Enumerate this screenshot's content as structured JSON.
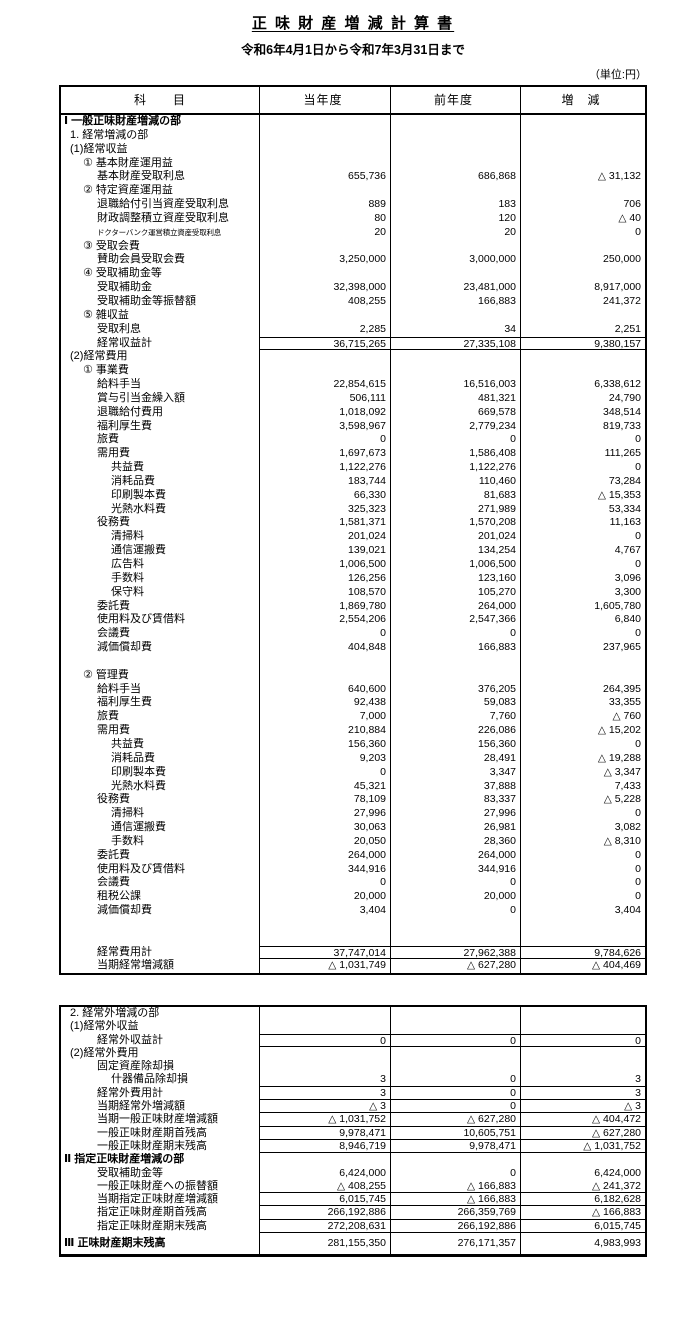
{
  "page": {
    "title": "正 味 財 産 増 減 計 算 書",
    "subtitle": "令和6年4月1日から令和7年3月31日まで",
    "unit_label": "（単位:円）"
  },
  "colors": {
    "text": "#000000",
    "background": "#ffffff",
    "border": "#000000"
  },
  "columns": {
    "account": "科　　目",
    "current": "当年度",
    "prior": "前年度",
    "change": "増　減"
  },
  "negative_prefix": "△",
  "table1": {
    "rows": [
      {
        "l": "Ⅰ 一般正味財産増減の部",
        "i": 0,
        "f": "b",
        "v": [
          "",
          "",
          ""
        ]
      },
      {
        "l": "1. 経常増減の部",
        "i": 1,
        "f": "",
        "v": [
          "",
          "",
          ""
        ]
      },
      {
        "l": "(1)経常収益",
        "i": 1,
        "f": "",
        "v": [
          "",
          "",
          ""
        ]
      },
      {
        "l": "① 基本財産運用益",
        "i": 2,
        "f": "",
        "v": [
          "",
          "",
          ""
        ]
      },
      {
        "l": "基本財産受取利息",
        "i": 3,
        "f": "",
        "v": [
          "655,736",
          "686,868",
          "△ 31,132"
        ]
      },
      {
        "l": "② 特定資産運用益",
        "i": 2,
        "f": "",
        "v": [
          "",
          "",
          ""
        ]
      },
      {
        "l": "退職給付引当資産受取利息",
        "i": 3,
        "f": "",
        "v": [
          "889",
          "183",
          "706"
        ]
      },
      {
        "l": "財政調整積立資産受取利息",
        "i": 3,
        "f": "",
        "v": [
          "80",
          "120",
          "△ 40"
        ]
      },
      {
        "l": "ドクターバンク運営積立資産受取利息",
        "i": 3,
        "f": "s",
        "v": [
          "20",
          "20",
          "0"
        ]
      },
      {
        "l": "③ 受取会費",
        "i": 2,
        "f": "",
        "v": [
          "",
          "",
          ""
        ]
      },
      {
        "l": "賛助会員受取会費",
        "i": 3,
        "f": "",
        "v": [
          "3,250,000",
          "3,000,000",
          "250,000"
        ]
      },
      {
        "l": "④ 受取補助金等",
        "i": 2,
        "f": "",
        "v": [
          "",
          "",
          ""
        ]
      },
      {
        "l": "受取補助金",
        "i": 3,
        "f": "",
        "v": [
          "32,398,000",
          "23,481,000",
          "8,917,000"
        ]
      },
      {
        "l": "受取補助金等振替額",
        "i": 3,
        "f": "",
        "v": [
          "408,255",
          "166,883",
          "241,372"
        ]
      },
      {
        "l": "⑤ 雑収益",
        "i": 2,
        "f": "",
        "v": [
          "",
          "",
          ""
        ]
      },
      {
        "l": "受取利息",
        "i": 3,
        "f": "",
        "v": [
          "2,285",
          "34",
          "2,251"
        ]
      },
      {
        "l": "経常収益計",
        "i": 3,
        "f": "tu",
        "v": [
          "36,715,265",
          "27,335,108",
          "9,380,157"
        ]
      },
      {
        "l": "(2)経常費用",
        "i": 1,
        "f": "",
        "v": [
          "",
          "",
          ""
        ]
      },
      {
        "l": "① 事業費",
        "i": 2,
        "f": "",
        "v": [
          "",
          "",
          ""
        ]
      },
      {
        "l": "給料手当",
        "i": 3,
        "f": "",
        "v": [
          "22,854,615",
          "16,516,003",
          "6,338,612"
        ]
      },
      {
        "l": "賞与引当金繰入額",
        "i": 3,
        "f": "",
        "v": [
          "506,111",
          "481,321",
          "24,790"
        ]
      },
      {
        "l": "退職給付費用",
        "i": 3,
        "f": "",
        "v": [
          "1,018,092",
          "669,578",
          "348,514"
        ]
      },
      {
        "l": "福利厚生費",
        "i": 3,
        "f": "",
        "v": [
          "3,598,967",
          "2,779,234",
          "819,733"
        ]
      },
      {
        "l": "旅費",
        "i": 3,
        "f": "",
        "v": [
          "0",
          "0",
          "0"
        ]
      },
      {
        "l": "需用費",
        "i": 3,
        "f": "",
        "v": [
          "1,697,673",
          "1,586,408",
          "111,265"
        ]
      },
      {
        "l": "共益費",
        "i": 4,
        "f": "",
        "v": [
          "1,122,276",
          "1,122,276",
          "0"
        ]
      },
      {
        "l": "消耗品費",
        "i": 4,
        "f": "",
        "v": [
          "183,744",
          "110,460",
          "73,284"
        ]
      },
      {
        "l": "印刷製本費",
        "i": 4,
        "f": "",
        "v": [
          "66,330",
          "81,683",
          "△ 15,353"
        ]
      },
      {
        "l": "光熱水料費",
        "i": 4,
        "f": "",
        "v": [
          "325,323",
          "271,989",
          "53,334"
        ]
      },
      {
        "l": "役務費",
        "i": 3,
        "f": "",
        "v": [
          "1,581,371",
          "1,570,208",
          "11,163"
        ]
      },
      {
        "l": "清掃料",
        "i": 4,
        "f": "",
        "v": [
          "201,024",
          "201,024",
          "0"
        ]
      },
      {
        "l": "通信運搬費",
        "i": 4,
        "f": "",
        "v": [
          "139,021",
          "134,254",
          "4,767"
        ]
      },
      {
        "l": "広告料",
        "i": 4,
        "f": "",
        "v": [
          "1,006,500",
          "1,006,500",
          "0"
        ]
      },
      {
        "l": "手数料",
        "i": 4,
        "f": "",
        "v": [
          "126,256",
          "123,160",
          "3,096"
        ]
      },
      {
        "l": "保守料",
        "i": 4,
        "f": "",
        "v": [
          "108,570",
          "105,270",
          "3,300"
        ]
      },
      {
        "l": "委託費",
        "i": 3,
        "f": "",
        "v": [
          "1,869,780",
          "264,000",
          "1,605,780"
        ]
      },
      {
        "l": "使用料及び賃借料",
        "i": 3,
        "f": "",
        "v": [
          "2,554,206",
          "2,547,366",
          "6,840"
        ]
      },
      {
        "l": "会議費",
        "i": 3,
        "f": "",
        "v": [
          "0",
          "0",
          "0"
        ]
      },
      {
        "l": "減価償却費",
        "i": 3,
        "f": "",
        "v": [
          "404,848",
          "166,883",
          "237,965"
        ]
      },
      {
        "l": "",
        "i": 0,
        "f": "",
        "v": [
          "",
          "",
          ""
        ]
      },
      {
        "l": "② 管理費",
        "i": 2,
        "f": "",
        "v": [
          "",
          "",
          ""
        ]
      },
      {
        "l": "給料手当",
        "i": 3,
        "f": "",
        "v": [
          "640,600",
          "376,205",
          "264,395"
        ]
      },
      {
        "l": "福利厚生費",
        "i": 3,
        "f": "",
        "v": [
          "92,438",
          "59,083",
          "33,355"
        ]
      },
      {
        "l": "旅費",
        "i": 3,
        "f": "",
        "v": [
          "7,000",
          "7,760",
          "△ 760"
        ]
      },
      {
        "l": "需用費",
        "i": 3,
        "f": "",
        "v": [
          "210,884",
          "226,086",
          "△ 15,202"
        ]
      },
      {
        "l": "共益費",
        "i": 4,
        "f": "",
        "v": [
          "156,360",
          "156,360",
          "0"
        ]
      },
      {
        "l": "消耗品費",
        "i": 4,
        "f": "",
        "v": [
          "9,203",
          "28,491",
          "△ 19,288"
        ]
      },
      {
        "l": "印刷製本費",
        "i": 4,
        "f": "",
        "v": [
          "0",
          "3,347",
          "△ 3,347"
        ]
      },
      {
        "l": "光熱水料費",
        "i": 4,
        "f": "",
        "v": [
          "45,321",
          "37,888",
          "7,433"
        ]
      },
      {
        "l": "役務費",
        "i": 3,
        "f": "",
        "v": [
          "78,109",
          "83,337",
          "△ 5,228"
        ]
      },
      {
        "l": "清掃料",
        "i": 4,
        "f": "",
        "v": [
          "27,996",
          "27,996",
          "0"
        ]
      },
      {
        "l": "通信運搬費",
        "i": 4,
        "f": "",
        "v": [
          "30,063",
          "26,981",
          "3,082"
        ]
      },
      {
        "l": "手数料",
        "i": 4,
        "f": "",
        "v": [
          "20,050",
          "28,360",
          "△ 8,310"
        ]
      },
      {
        "l": "委託費",
        "i": 3,
        "f": "",
        "v": [
          "264,000",
          "264,000",
          "0"
        ]
      },
      {
        "l": "使用料及び賃借料",
        "i": 3,
        "f": "",
        "v": [
          "344,916",
          "344,916",
          "0"
        ]
      },
      {
        "l": "会議費",
        "i": 3,
        "f": "",
        "v": [
          "0",
          "0",
          "0"
        ]
      },
      {
        "l": "租税公課",
        "i": 3,
        "f": "",
        "v": [
          "20,000",
          "20,000",
          "0"
        ]
      },
      {
        "l": "減価償却費",
        "i": 3,
        "f": "",
        "v": [
          "3,404",
          "0",
          "3,404"
        ]
      },
      {
        "l": "",
        "i": 0,
        "f": "",
        "v": [
          "",
          "",
          ""
        ]
      },
      {
        "l": "",
        "i": 0,
        "f": "",
        "v": [
          "",
          "",
          ""
        ]
      },
      {
        "l": "経常費用計",
        "i": 3,
        "f": "tu",
        "v": [
          "37,747,014",
          "27,962,388",
          "9,784,626"
        ]
      },
      {
        "l": "当期経常増減額",
        "i": 3,
        "f": "",
        "v": [
          "△ 1,031,749",
          "△ 627,280",
          "△ 404,469"
        ]
      }
    ]
  },
  "table2": {
    "rows": [
      {
        "l": "2. 経常外増減の部",
        "i": 1,
        "f": "",
        "v": [
          "",
          "",
          ""
        ]
      },
      {
        "l": "(1)経常外収益",
        "i": 1,
        "f": "",
        "v": [
          "",
          "",
          ""
        ]
      },
      {
        "l": "経常外収益計",
        "i": 3,
        "f": "tu",
        "v": [
          "0",
          "0",
          "0"
        ]
      },
      {
        "l": "(2)経常外費用",
        "i": 1,
        "f": "",
        "v": [
          "",
          "",
          ""
        ]
      },
      {
        "l": "固定資産除却損",
        "i": 3,
        "f": "",
        "v": [
          "",
          "",
          ""
        ]
      },
      {
        "l": "什器備品除却損",
        "i": 4,
        "f": "u",
        "v": [
          "3",
          "0",
          "3"
        ]
      },
      {
        "l": "経常外費用計",
        "i": 3,
        "f": "u",
        "v": [
          "3",
          "0",
          "3"
        ]
      },
      {
        "l": "当期経常外増減額",
        "i": 3,
        "f": "u",
        "v": [
          "△ 3",
          "0",
          "△ 3"
        ]
      },
      {
        "l": "当期一般正味財産増減額",
        "i": 3,
        "f": "u",
        "v": [
          "△ 1,031,752",
          "△ 627,280",
          "△ 404,472"
        ]
      },
      {
        "l": "一般正味財産期首残高",
        "i": 3,
        "f": "u",
        "v": [
          "9,978,471",
          "10,605,751",
          "△ 627,280"
        ]
      },
      {
        "l": "一般正味財産期末残高",
        "i": 3,
        "f": "u",
        "v": [
          "8,946,719",
          "9,978,471",
          "△ 1,031,752"
        ]
      },
      {
        "l": "Ⅱ 指定正味財産増減の部",
        "i": 0,
        "f": "b",
        "v": [
          "",
          "",
          ""
        ]
      },
      {
        "l": "受取補助金等",
        "i": 3,
        "f": "",
        "v": [
          "6,424,000",
          "0",
          "6,424,000"
        ]
      },
      {
        "l": "一般正味財産への振替額",
        "i": 3,
        "f": "u",
        "v": [
          "△ 408,255",
          "△ 166,883",
          "△ 241,372"
        ]
      },
      {
        "l": "当期指定正味財産増減額",
        "i": 3,
        "f": "u",
        "v": [
          "6,015,745",
          "△ 166,883",
          "6,182,628"
        ]
      },
      {
        "l": "指定正味財産期首残高",
        "i": 3,
        "f": "u",
        "v": [
          "266,192,886",
          "266,359,769",
          "△ 166,883"
        ]
      },
      {
        "l": "指定正味財産期末残高",
        "i": 3,
        "f": "u",
        "v": [
          "272,208,631",
          "266,192,886",
          "6,015,745"
        ]
      },
      {
        "l": "Ⅲ 正味財産期末残高",
        "i": 0,
        "f": "bT",
        "v": [
          "281,155,350",
          "276,171,357",
          "4,983,993"
        ]
      }
    ]
  }
}
